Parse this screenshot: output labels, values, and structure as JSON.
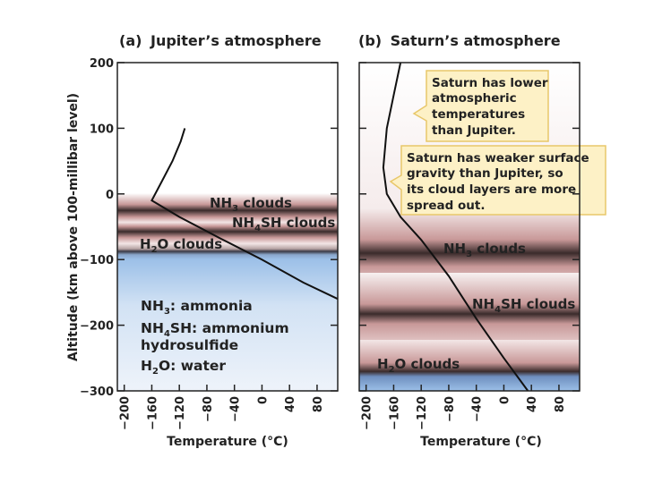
{
  "figure": {
    "y_axis_title": "Altitude (km above 100-millibar level)",
    "y_ticks": [
      "200",
      "100",
      "0",
      "−100",
      "−200",
      "−300"
    ],
    "x_ticks": [
      "−200",
      "−160",
      "−120",
      "−80",
      "−40",
      "0",
      "40",
      "80"
    ]
  },
  "panel_a": {
    "letter": "(a)",
    "title": "Jupiter’s atmosphere",
    "x_axis_title": "Temperature (°C)",
    "clouds": {
      "nh3": {
        "pre": "NH",
        "sub": "3",
        "post": " clouds"
      },
      "nh4sh": {
        "pre": "NH",
        "sub": "4",
        "post": "SH clouds"
      },
      "h2o": {
        "pre": "H",
        "sub": "2",
        "post": "O clouds"
      }
    },
    "legend": {
      "nh3": {
        "pre": "NH",
        "sub": "3",
        "post": ": ammonia"
      },
      "nh4sh": {
        "pre": "NH",
        "sub": "4",
        "post": "SH: ammonium"
      },
      "nh4sh_cont": "hydrosulfide",
      "h2o": {
        "pre": "H",
        "sub": "2",
        "post": "O: water"
      }
    },
    "colors": {
      "cloud_band": "#c89898",
      "deep_layer": "#9cc0e8"
    }
  },
  "panel_b": {
    "letter": "(b)",
    "title": "Saturn’s atmosphere",
    "x_axis_title": "Temperature (°C)",
    "clouds": {
      "nh3": {
        "pre": "NH",
        "sub": "3",
        "post": " clouds"
      },
      "nh4sh": {
        "pre": "NH",
        "sub": "4",
        "post": "SH clouds"
      },
      "h2o": {
        "pre": "H",
        "sub": "2",
        "post": "O clouds"
      }
    },
    "callout_1": [
      "Saturn has lower",
      "atmospheric",
      "temperatures",
      "than Jupiter."
    ],
    "callout_2": [
      "Saturn has weaker surface",
      "gravity than Jupiter, so",
      "its cloud layers are more",
      "spread out."
    ],
    "colors": {
      "callout_fill": "#fdf1c6",
      "callout_border": "#e8c76a"
    }
  },
  "chart_data": [
    {
      "type": "line",
      "panel": "a",
      "x_unit": "Temperature (°C)",
      "y_unit": "Altitude (km above 100-millibar level)",
      "xlim": [
        -210,
        110
      ],
      "ylim": [
        -300,
        200
      ],
      "series": [
        {
          "x": [
            -112,
            -118,
            -130,
            -145,
            -160,
            -120,
            -60,
            0,
            60,
            110
          ],
          "y": [
            100,
            80,
            50,
            20,
            -10,
            -35,
            -68,
            -100,
            -135,
            -160
          ]
        }
      ],
      "layers": [
        {
          "name": "NH3 clouds",
          "center": -10
        },
        {
          "name": "NH4SH clouds",
          "center": -32
        },
        {
          "name": "H2O clouds",
          "center": -65
        }
      ]
    },
    {
      "type": "line",
      "panel": "b",
      "x_unit": "Temperature (°C)",
      "y_unit": "Altitude (km above 100-millibar level)",
      "xlim": [
        -210,
        110
      ],
      "ylim": [
        -300,
        200
      ],
      "series": [
        {
          "x": [
            -150,
            -160,
            -170,
            -175,
            -170,
            -150,
            -120,
            -80,
            -40,
            0,
            35
          ],
          "y": [
            200,
            150,
            100,
            40,
            0,
            -35,
            -70,
            -125,
            -190,
            -250,
            -300
          ]
        }
      ],
      "layers": [
        {
          "name": "NH3 clouds",
          "center": -98
        },
        {
          "name": "NH4SH clouds",
          "center": -185
        },
        {
          "name": "H2O clouds",
          "center": -267
        }
      ]
    }
  ]
}
